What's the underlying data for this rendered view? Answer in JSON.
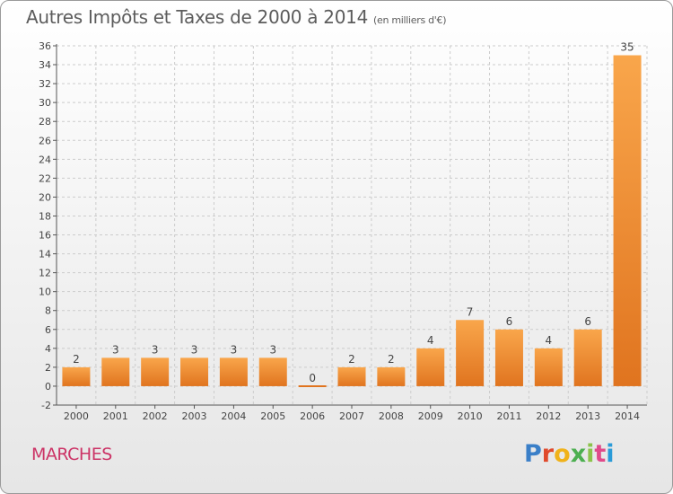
{
  "title": "Autres Impôts et Taxes de 2000 à 2014",
  "subtitle": "(en milliers d'€)",
  "city": "MARCHES",
  "logo": {
    "letters": [
      "P",
      "r",
      "o",
      "x",
      "i",
      "t",
      "i"
    ],
    "colors": [
      "#3a7fc8",
      "#e04a2c",
      "#f0b21a",
      "#4caf50",
      "#8bc34a",
      "#e04a8a",
      "#2a9bd8"
    ]
  },
  "chart_data": {
    "type": "bar",
    "categories": [
      "2000",
      "2001",
      "2002",
      "2003",
      "2004",
      "2005",
      "2006",
      "2007",
      "2008",
      "2009",
      "2010",
      "2011",
      "2012",
      "2013",
      "2014"
    ],
    "values": [
      2,
      3,
      3,
      3,
      3,
      3,
      0,
      2,
      2,
      4,
      7,
      6,
      4,
      6,
      35
    ],
    "ylim": [
      -2,
      36
    ],
    "yticks": [
      -2,
      0,
      2,
      4,
      6,
      8,
      10,
      12,
      14,
      16,
      18,
      20,
      22,
      24,
      26,
      28,
      30,
      32,
      34,
      36
    ],
    "grid": true,
    "colors": {
      "bar_light": "#f9a64b",
      "bar_dark": "#e0741f",
      "grid": "#cccccc"
    }
  }
}
